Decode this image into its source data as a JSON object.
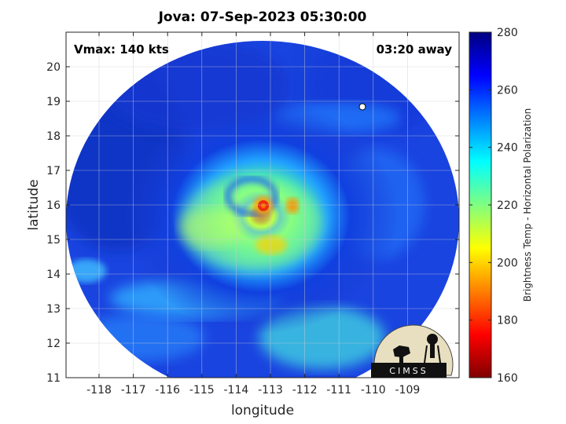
{
  "title": "Jova: 07-Sep-2023 05:30:00",
  "annotations": {
    "vmax": "Vmax: 140 kts",
    "time_away": "03:20 away"
  },
  "axes": {
    "xlabel": "longitude",
    "ylabel": "latitude",
    "x_ticks": [
      "-118",
      "-117",
      "-116",
      "-115",
      "-114",
      "-113",
      "-112",
      "-111",
      "-110",
      "-109"
    ],
    "y_ticks": [
      "11",
      "12",
      "13",
      "14",
      "15",
      "16",
      "17",
      "18",
      "19",
      "20"
    ]
  },
  "colorbar": {
    "label": "Brightness Temp - Horizontal Polarization",
    "ticks": [
      "160",
      "180",
      "200",
      "220",
      "240",
      "260",
      "280"
    ],
    "range": [
      160,
      280
    ]
  },
  "logo": {
    "text": "CIMSS"
  },
  "colors": {
    "ring_blue": "#1f3fe0",
    "eyewall": "#e03010",
    "outer": "#0a1a90"
  }
}
